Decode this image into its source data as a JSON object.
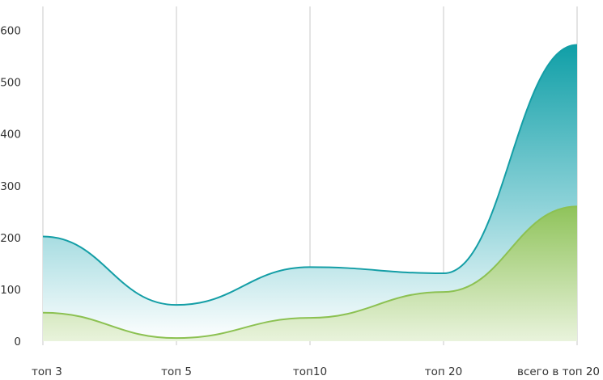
{
  "chart_data": {
    "type": "area",
    "categories": [
      "топ 3",
      "топ 5",
      "топ10",
      "топ 20",
      "всего в топ 20"
    ],
    "y_ticks": [
      "0",
      "100",
      "200",
      "300",
      "400",
      "500",
      "600"
    ],
    "ylim": [
      0,
      600
    ],
    "grid": "vertical",
    "series": [
      {
        "color": "#149ea6",
        "fill_top": "#109fa7",
        "fill_bottom": "#ffffff",
        "values": [
          202,
          70,
          143,
          131,
          572
        ]
      },
      {
        "color": "#8cc152",
        "fill_top": "#8fc35a",
        "fill_bottom": "#e9f3dc",
        "values": [
          55,
          6,
          45,
          95,
          260
        ]
      }
    ]
  }
}
